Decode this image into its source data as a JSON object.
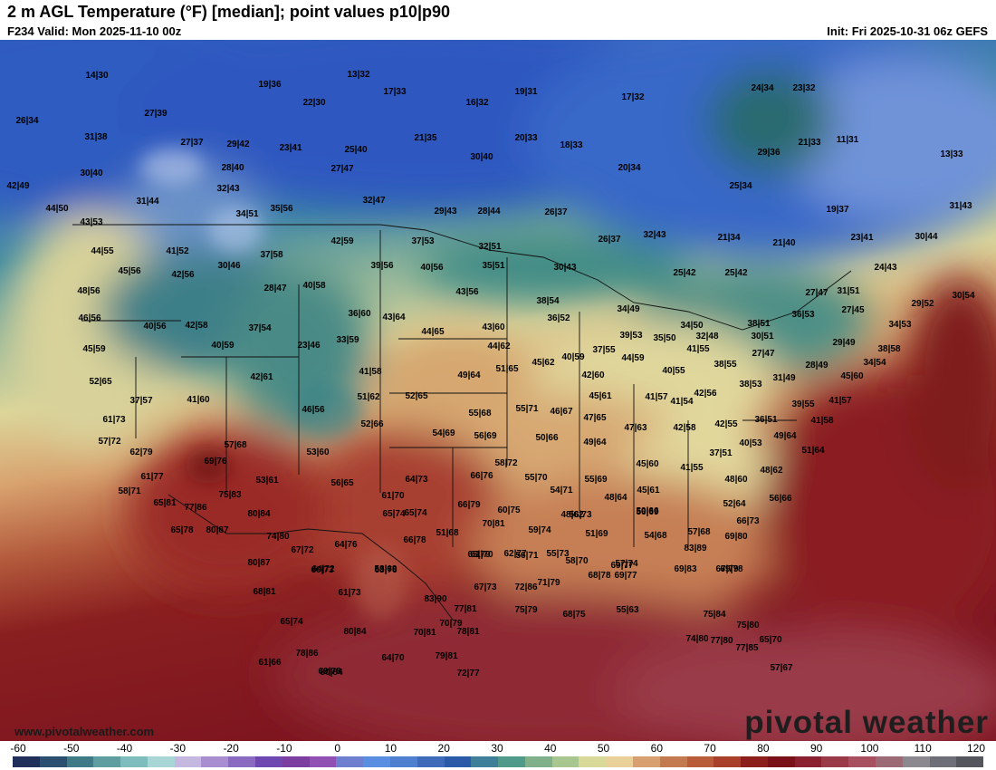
{
  "header": {
    "title": "2 m AGL Temperature (°F) [median]; point values p10|p90",
    "valid": "F234 Valid: Mon 2025-11-10 00z",
    "init": "Init: Fri 2025-10-31 06z GEFS"
  },
  "branding": {
    "url": "www.pivotalweather.com",
    "watermark": "pivotal weather"
  },
  "colorbar": {
    "ticks": [
      "-60",
      "-50",
      "-40",
      "-30",
      "-20",
      "-10",
      "0",
      "10",
      "20",
      "30",
      "40",
      "50",
      "60",
      "70",
      "80",
      "90",
      "100",
      "110",
      "120"
    ],
    "colors": [
      "#20305a",
      "#2c4e70",
      "#3f7a86",
      "#5f9ea0",
      "#7fbcbe",
      "#a8d5d5",
      "#c4b8e0",
      "#a88ed0",
      "#8a6ac0",
      "#6e48b0",
      "#7c3ea0",
      "#9050b4",
      "#6f7fd0",
      "#5a8ee0",
      "#4f7fcf",
      "#3f6aba",
      "#2a5aa8",
      "#3f7f9a",
      "#4f9a8a",
      "#7fb08a",
      "#a8c690",
      "#d8d898",
      "#e8d098",
      "#d8a070",
      "#c47a50",
      "#b85c3a",
      "#a8402c",
      "#8c1e1c",
      "#7a1018",
      "#8a2030",
      "#9a3a48",
      "#a85060",
      "#9c6a74",
      "#8c8890",
      "#6e6e78",
      "#55555e"
    ]
  },
  "points": [
    {
      "text": "14|30"
    },
    {
      "text": "26|34"
    },
    {
      "text": "27|39"
    },
    {
      "text": "31|38"
    },
    {
      "text": "27|37"
    },
    {
      "text": "29|42"
    },
    {
      "text": "30|40"
    },
    {
      "text": "28|40"
    },
    {
      "text": "42|49"
    },
    {
      "text": "32|43"
    },
    {
      "text": "31|44"
    },
    {
      "text": "44|50"
    },
    {
      "text": "34|51"
    },
    {
      "text": "35|56"
    },
    {
      "text": "19|36"
    },
    {
      "text": "13|32"
    },
    {
      "text": "17|33"
    },
    {
      "text": "22|30"
    },
    {
      "text": "23|41"
    },
    {
      "text": "25|40"
    },
    {
      "text": "27|47"
    },
    {
      "text": "32|47"
    },
    {
      "text": "16|32"
    },
    {
      "text": "19|31"
    },
    {
      "text": "17|32"
    },
    {
      "text": "21|35"
    },
    {
      "text": "30|40"
    },
    {
      "text": "20|33"
    },
    {
      "text": "18|33"
    },
    {
      "text": "20|34"
    },
    {
      "text": "29|43"
    },
    {
      "text": "28|44"
    },
    {
      "text": "26|37"
    },
    {
      "text": "24|34"
    },
    {
      "text": "23|32"
    },
    {
      "text": "29|36"
    },
    {
      "text": "21|33"
    },
    {
      "text": "11|31"
    },
    {
      "text": "13|33"
    },
    {
      "text": "25|34"
    },
    {
      "text": "19|37"
    },
    {
      "text": "31|43"
    },
    {
      "text": "21|34"
    },
    {
      "text": "21|40"
    },
    {
      "text": "23|41"
    },
    {
      "text": "30|44"
    },
    {
      "text": "32|43"
    },
    {
      "text": "26|37"
    },
    {
      "text": "43|53"
    },
    {
      "text": "44|55"
    },
    {
      "text": "41|52"
    },
    {
      "text": "45|56"
    },
    {
      "text": "42|56"
    },
    {
      "text": "30|46"
    },
    {
      "text": "37|58"
    },
    {
      "text": "42|59"
    },
    {
      "text": "37|53"
    },
    {
      "text": "32|51"
    },
    {
      "text": "39|56"
    },
    {
      "text": "40|56"
    },
    {
      "text": "35|51"
    },
    {
      "text": "30|43"
    },
    {
      "text": "25|42"
    },
    {
      "text": "25|42"
    },
    {
      "text": "24|43"
    },
    {
      "text": "48|56"
    },
    {
      "text": "28|47"
    },
    {
      "text": "40|58"
    },
    {
      "text": "43|56"
    },
    {
      "text": "38|54"
    },
    {
      "text": "27|47"
    },
    {
      "text": "31|51"
    },
    {
      "text": "30|54"
    },
    {
      "text": "29|52"
    },
    {
      "text": "46|56"
    },
    {
      "text": "40|56"
    },
    {
      "text": "42|58"
    },
    {
      "text": "36|60"
    },
    {
      "text": "43|64"
    },
    {
      "text": "34|49"
    },
    {
      "text": "34|50"
    },
    {
      "text": "38|51"
    },
    {
      "text": "36|53"
    },
    {
      "text": "27|45"
    },
    {
      "text": "34|53"
    },
    {
      "text": "45|59"
    },
    {
      "text": "37|54"
    },
    {
      "text": "40|59"
    },
    {
      "text": "23|46"
    },
    {
      "text": "33|59"
    },
    {
      "text": "44|65"
    },
    {
      "text": "43|60"
    },
    {
      "text": "36|52"
    },
    {
      "text": "39|53"
    },
    {
      "text": "35|50"
    },
    {
      "text": "32|48"
    },
    {
      "text": "30|51"
    },
    {
      "text": "29|49"
    },
    {
      "text": "44|62"
    },
    {
      "text": "40|59"
    },
    {
      "text": "37|55"
    },
    {
      "text": "44|59"
    },
    {
      "text": "41|55"
    },
    {
      "text": "27|47"
    },
    {
      "text": "38|55"
    },
    {
      "text": "28|49"
    },
    {
      "text": "38|58"
    },
    {
      "text": "34|54"
    },
    {
      "text": "45|62"
    },
    {
      "text": "52|65"
    },
    {
      "text": "42|61"
    },
    {
      "text": "41|58"
    },
    {
      "text": "49|64"
    },
    {
      "text": "51|65"
    },
    {
      "text": "42|60"
    },
    {
      "text": "40|55"
    },
    {
      "text": "31|49"
    },
    {
      "text": "45|60"
    },
    {
      "text": "37|57"
    },
    {
      "text": "41|60"
    },
    {
      "text": "51|62"
    },
    {
      "text": "52|65"
    },
    {
      "text": "38|53"
    },
    {
      "text": "42|56"
    },
    {
      "text": "45|61"
    },
    {
      "text": "41|57"
    },
    {
      "text": "39|55"
    },
    {
      "text": "41|57"
    },
    {
      "text": "61|73"
    },
    {
      "text": "46|56"
    },
    {
      "text": "55|68"
    },
    {
      "text": "55|71"
    },
    {
      "text": "46|67"
    },
    {
      "text": "47|65"
    },
    {
      "text": "41|54"
    },
    {
      "text": "36|51"
    },
    {
      "text": "41|58"
    },
    {
      "text": "57|72"
    },
    {
      "text": "52|66"
    },
    {
      "text": "54|69"
    },
    {
      "text": "56|69"
    },
    {
      "text": "47|63"
    },
    {
      "text": "42|58"
    },
    {
      "text": "42|55"
    },
    {
      "text": "49|64"
    },
    {
      "text": "62|79"
    },
    {
      "text": "57|68"
    },
    {
      "text": "53|60"
    },
    {
      "text": "50|66"
    },
    {
      "text": "49|64"
    },
    {
      "text": "40|53"
    },
    {
      "text": "51|64"
    },
    {
      "text": "61|77"
    },
    {
      "text": "69|76"
    },
    {
      "text": "53|61"
    },
    {
      "text": "58|72"
    },
    {
      "text": "37|51"
    },
    {
      "text": "45|60"
    },
    {
      "text": "41|55"
    },
    {
      "text": "48|62"
    },
    {
      "text": "58|71"
    },
    {
      "text": "75|83"
    },
    {
      "text": "56|65"
    },
    {
      "text": "64|73"
    },
    {
      "text": "66|76"
    },
    {
      "text": "55|70"
    },
    {
      "text": "55|69"
    },
    {
      "text": "48|60"
    },
    {
      "text": "65|81"
    },
    {
      "text": "77|86"
    },
    {
      "text": "61|70"
    },
    {
      "text": "54|71"
    },
    {
      "text": "48|64"
    },
    {
      "text": "45|61"
    },
    {
      "text": "56|66"
    },
    {
      "text": "80|84"
    },
    {
      "text": "65|74"
    },
    {
      "text": "65|74"
    },
    {
      "text": "66|79"
    },
    {
      "text": "60|75"
    },
    {
      "text": "56|73"
    },
    {
      "text": "50|66"
    },
    {
      "text": "52|64"
    },
    {
      "text": "65|78"
    },
    {
      "text": "80|87"
    },
    {
      "text": "74|80"
    },
    {
      "text": "70|81"
    },
    {
      "text": "59|74"
    },
    {
      "text": "48|62"
    },
    {
      "text": "56|69"
    },
    {
      "text": "66|73"
    },
    {
      "text": "67|72"
    },
    {
      "text": "64|76"
    },
    {
      "text": "66|78"
    },
    {
      "text": "51|68"
    },
    {
      "text": "51|69"
    },
    {
      "text": "54|68"
    },
    {
      "text": "57|68"
    },
    {
      "text": "80|87"
    },
    {
      "text": "64|72"
    },
    {
      "text": "58|69"
    },
    {
      "text": "65|79"
    },
    {
      "text": "62|77"
    },
    {
      "text": "55|73"
    },
    {
      "text": "57|74"
    },
    {
      "text": "83|89"
    },
    {
      "text": "69|80"
    },
    {
      "text": "68|81"
    },
    {
      "text": "60|73"
    },
    {
      "text": "63|76"
    },
    {
      "text": "61|70"
    },
    {
      "text": "56|71"
    },
    {
      "text": "58|70"
    },
    {
      "text": "69|77"
    },
    {
      "text": "69|83"
    },
    {
      "text": "69|78"
    },
    {
      "text": "61|73"
    },
    {
      "text": "83|90"
    },
    {
      "text": "67|73"
    },
    {
      "text": "72|86"
    },
    {
      "text": "71|79"
    },
    {
      "text": "68|78"
    },
    {
      "text": "69|77"
    },
    {
      "text": "67|79"
    },
    {
      "text": "65|74"
    },
    {
      "text": "80|84"
    },
    {
      "text": "70|81"
    },
    {
      "text": "70|79"
    },
    {
      "text": "75|79"
    },
    {
      "text": "68|75"
    },
    {
      "text": "55|63"
    },
    {
      "text": "75|84"
    },
    {
      "text": "75|80"
    },
    {
      "text": "78|86"
    },
    {
      "text": "80|84"
    },
    {
      "text": "74|80"
    },
    {
      "text": "77|80"
    },
    {
      "text": "77|85"
    },
    {
      "text": "65|70"
    },
    {
      "text": "64|70"
    },
    {
      "text": "79|81"
    },
    {
      "text": "77|81"
    },
    {
      "text": "78|81"
    },
    {
      "text": "61|66"
    },
    {
      "text": "69|78"
    },
    {
      "text": "72|77"
    },
    {
      "text": "57|67"
    }
  ]
}
